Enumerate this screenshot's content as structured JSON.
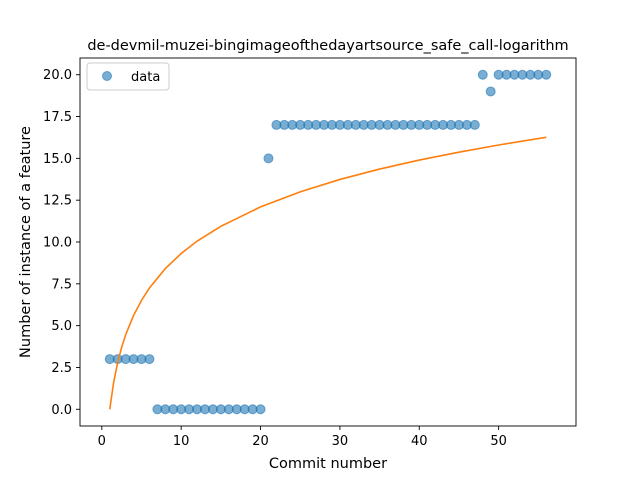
{
  "chart_data": {
    "type": "scatter",
    "title": "de-devmil-muzei-bingimageofthedayartsource_safe_call-logarithm",
    "xlabel": "Commit number",
    "ylabel": "Number of instance of a feature",
    "xlim": [
      -2.75,
      59.75
    ],
    "ylim": [
      -1.0,
      21.0
    ],
    "xticks": [
      0,
      10,
      20,
      30,
      40,
      50
    ],
    "yticks": [
      0.0,
      2.5,
      5.0,
      7.5,
      10.0,
      12.5,
      15.0,
      17.5,
      20.0
    ],
    "xtick_labels": [
      "0",
      "10",
      "20",
      "30",
      "40",
      "50"
    ],
    "ytick_labels": [
      "0.0",
      "2.5",
      "5.0",
      "7.5",
      "10.0",
      "12.5",
      "15.0",
      "17.5",
      "20.0"
    ],
    "legend": {
      "position": "upper-left",
      "entries": [
        "data"
      ]
    },
    "grid": false,
    "series": [
      {
        "name": "data",
        "type": "scatter",
        "color": "#1f77b4",
        "x": [
          1,
          2,
          3,
          4,
          5,
          6,
          7,
          8,
          9,
          10,
          11,
          12,
          13,
          14,
          15,
          16,
          17,
          18,
          19,
          20,
          21,
          22,
          23,
          24,
          25,
          26,
          27,
          28,
          29,
          30,
          31,
          32,
          33,
          34,
          35,
          36,
          37,
          38,
          39,
          40,
          41,
          42,
          43,
          44,
          45,
          46,
          47,
          48,
          49,
          50,
          51,
          52,
          53,
          54,
          55,
          56
        ],
        "y": [
          3,
          3,
          3,
          3,
          3,
          3,
          0,
          0,
          0,
          0,
          0,
          0,
          0,
          0,
          0,
          0,
          0,
          0,
          0,
          0,
          15,
          17,
          17,
          17,
          17,
          17,
          17,
          17,
          17,
          17,
          17,
          17,
          17,
          17,
          17,
          17,
          17,
          17,
          17,
          17,
          17,
          17,
          17,
          17,
          17,
          17,
          17,
          20,
          19,
          20,
          20,
          20,
          20,
          20,
          20,
          20
        ]
      },
      {
        "type": "line",
        "color": "#ff7f0e",
        "x": [
          1,
          1.5,
          2,
          2.5,
          3,
          4,
          5,
          6,
          8,
          10,
          12,
          15,
          20,
          25,
          30,
          35,
          40,
          45,
          50,
          56
        ],
        "y": [
          0.0,
          1.64,
          2.81,
          3.71,
          4.45,
          5.61,
          6.51,
          7.25,
          8.41,
          9.31,
          10.05,
          10.94,
          12.1,
          13.0,
          13.74,
          14.36,
          14.9,
          15.37,
          15.8,
          16.26
        ]
      }
    ]
  }
}
